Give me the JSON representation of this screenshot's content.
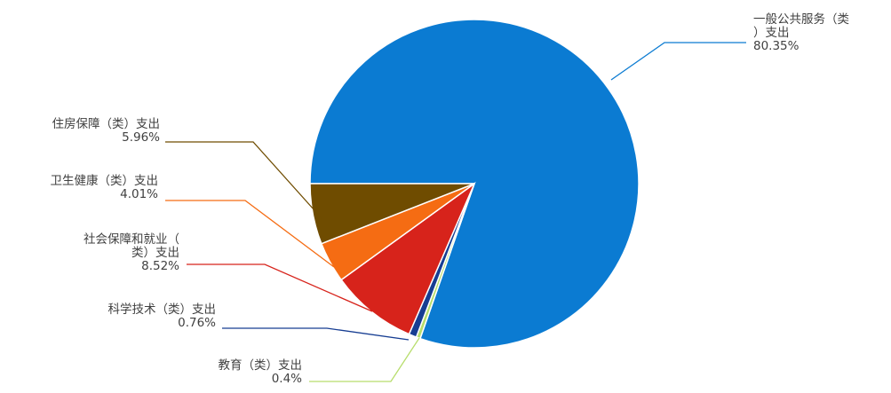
{
  "chart_data": {
    "type": "pie",
    "title": "",
    "legend": "none",
    "slices": [
      {
        "name": "一般公共服务（类）支出",
        "label_lines": [
          "一般公共服务（类",
          "）支出"
        ],
        "value": 80.35,
        "value_text": "80.35%",
        "color": "#0b7bd2"
      },
      {
        "name": "教育（类）支出",
        "label_lines": [
          "教育（类）支出"
        ],
        "value": 0.4,
        "value_text": "0.4%",
        "color": "#b7dd6c"
      },
      {
        "name": "科学技术（类）支出",
        "label_lines": [
          "科学技术（类）支出"
        ],
        "value": 0.76,
        "value_text": "0.76%",
        "color": "#163d92"
      },
      {
        "name": "社会保障和就业（类）支出",
        "label_lines": [
          "社会保障和就业（",
          "类）支出"
        ],
        "value": 8.52,
        "value_text": "8.52%",
        "color": "#d7231b"
      },
      {
        "name": "卫生健康（类）支出",
        "label_lines": [
          "卫生健康（类）支出"
        ],
        "value": 4.01,
        "value_text": "4.01%",
        "color": "#f56c13"
      },
      {
        "name": "住房保障（类）支出",
        "label_lines": [
          "住房保障（类）支出"
        ],
        "value": 5.96,
        "value_text": "5.96%",
        "color": "#6f4c00"
      }
    ]
  }
}
